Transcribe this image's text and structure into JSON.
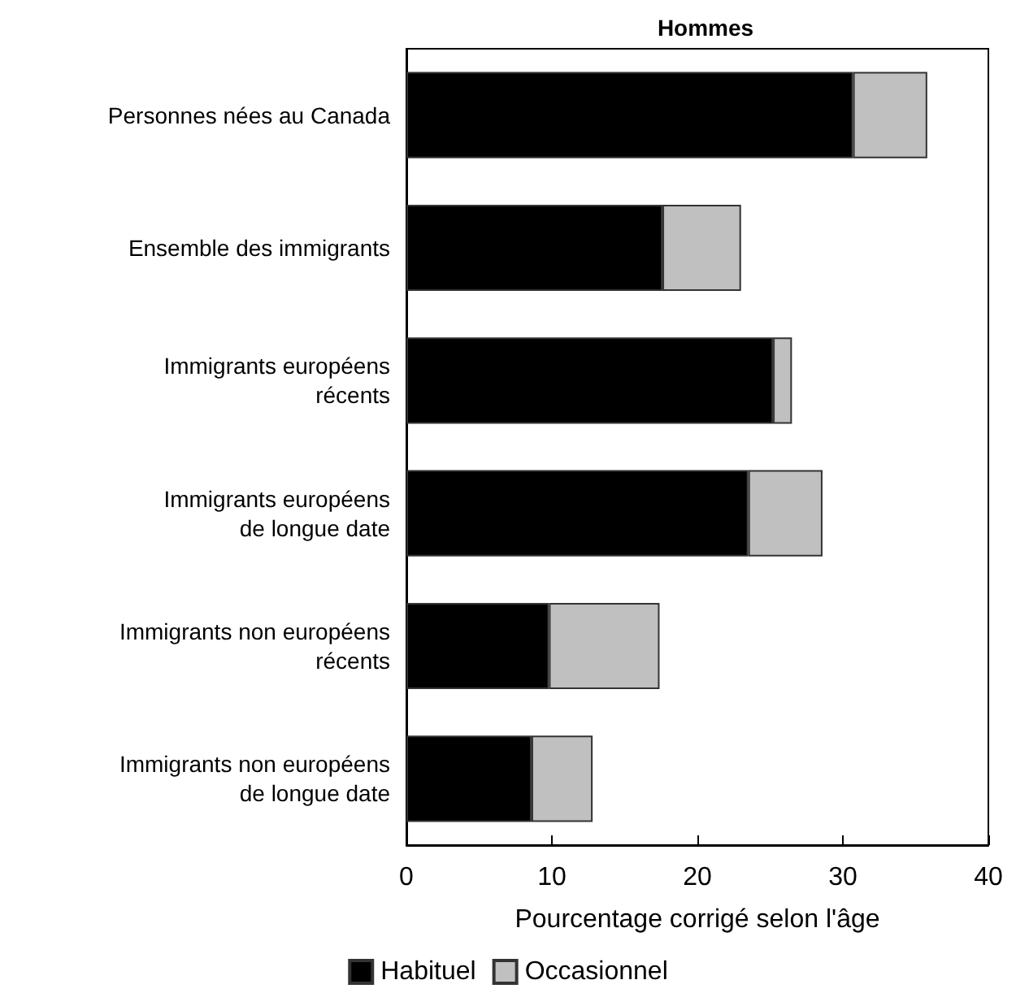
{
  "chart_data": {
    "type": "bar",
    "title": "Hommes",
    "orientation": "horizontal",
    "stacked": true,
    "categories": [
      "Personnes nées au Canada",
      "Ensemble des immigrants",
      "Immigrants européens\nrécents",
      "Immigrants européens\nde longue date",
      "Immigrants non européens\nrécents",
      "Immigrants non européens\nde longue date"
    ],
    "series": [
      {
        "name": "Habituel",
        "color": "#000000",
        "values": [
          30.7,
          17.6,
          25.2,
          23.5,
          9.8,
          8.6
        ]
      },
      {
        "name": "Occasionnel",
        "color": "#c0c0c0",
        "values": [
          5.1,
          5.4,
          1.3,
          5.1,
          7.6,
          4.2
        ]
      }
    ],
    "xlabel": "Pourcentage corrigé selon l'âge",
    "xlim": [
      0,
      40
    ],
    "xticks": [
      0,
      10,
      20,
      30,
      40
    ],
    "grid": false,
    "legend": "bottom"
  }
}
